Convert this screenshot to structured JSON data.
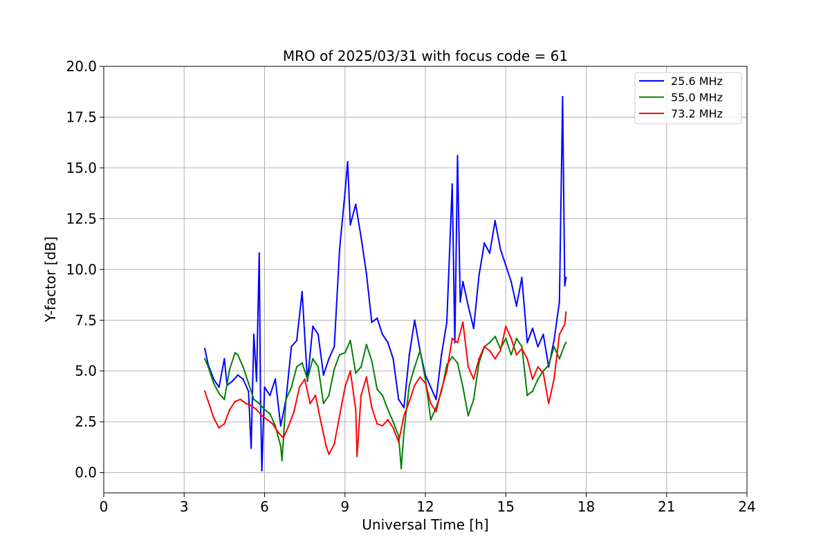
{
  "chart_data": {
    "type": "line",
    "title": "MRO of 2025/03/31 with focus code = 61",
    "xlabel": "Universal Time [h]",
    "ylabel": "Y-factor [dB]",
    "xlim": [
      0,
      24
    ],
    "ylim": [
      -1.0,
      20.0
    ],
    "xticks": [
      0,
      3,
      6,
      9,
      12,
      15,
      18,
      21,
      24
    ],
    "xtick_labels": [
      "0",
      "3",
      "6",
      "9",
      "12",
      "15",
      "18",
      "21",
      "24"
    ],
    "yticks": [
      0,
      2.5,
      5,
      7.5,
      10,
      12.5,
      15,
      17.5,
      20
    ],
    "ytick_labels": [
      "0.0",
      "2.5",
      "5.0",
      "7.5",
      "10.0",
      "12.5",
      "15.0",
      "17.5",
      "20.0"
    ],
    "grid": true,
    "legend_position": "top-right",
    "series": [
      {
        "name": "25.6 MHz",
        "legend_label": "  25.6 MHz",
        "color": "#0000ff",
        "x": [
          3.77,
          3.9,
          4.1,
          4.3,
          4.5,
          4.6,
          4.8,
          5.0,
          5.2,
          5.4,
          5.5,
          5.6,
          5.7,
          5.8,
          5.85,
          5.9,
          6.0,
          6.2,
          6.4,
          6.6,
          6.8,
          7.0,
          7.2,
          7.4,
          7.6,
          7.8,
          8.0,
          8.2,
          8.4,
          8.6,
          8.8,
          9.0,
          9.1,
          9.2,
          9.4,
          9.6,
          9.8,
          10.0,
          10.2,
          10.4,
          10.6,
          10.8,
          11.0,
          11.2,
          11.4,
          11.6,
          11.8,
          12.0,
          12.2,
          12.4,
          12.6,
          12.8,
          13.0,
          13.1,
          13.2,
          13.3,
          13.4,
          13.6,
          13.8,
          14.0,
          14.2,
          14.4,
          14.6,
          14.8,
          15.0,
          15.2,
          15.4,
          15.6,
          15.8,
          16.0,
          16.2,
          16.4,
          16.6,
          16.8,
          17.0,
          17.12,
          17.2,
          17.25
        ],
        "y": [
          6.1,
          5.3,
          4.6,
          4.2,
          5.6,
          4.3,
          4.5,
          4.8,
          4.6,
          4.0,
          1.2,
          6.8,
          4.5,
          10.8,
          3.5,
          0.1,
          4.2,
          3.8,
          4.6,
          2.3,
          3.6,
          6.2,
          6.5,
          8.9,
          4.5,
          7.2,
          6.8,
          4.8,
          5.6,
          6.2,
          11.0,
          13.8,
          15.3,
          12.2,
          13.2,
          11.6,
          9.8,
          7.4,
          7.6,
          6.8,
          6.4,
          5.6,
          3.6,
          3.2,
          5.8,
          7.5,
          6.0,
          4.8,
          4.2,
          3.6,
          5.8,
          7.4,
          14.2,
          6.4,
          15.6,
          8.4,
          9.4,
          8.2,
          7.1,
          9.7,
          11.3,
          10.8,
          12.4,
          11.0,
          10.2,
          9.4,
          8.2,
          9.6,
          6.4,
          7.1,
          6.2,
          6.8,
          5.2,
          6.5,
          8.4,
          18.5,
          9.2,
          9.6
        ]
      },
      {
        "name": "55.0 MHz",
        "legend_label": "  55.0 MHz",
        "color": "#008000",
        "x": [
          3.77,
          3.9,
          4.1,
          4.3,
          4.5,
          4.7,
          4.9,
          5.0,
          5.2,
          5.4,
          5.6,
          5.8,
          6.0,
          6.2,
          6.4,
          6.6,
          6.65,
          6.8,
          7.0,
          7.2,
          7.4,
          7.6,
          7.8,
          8.0,
          8.2,
          8.4,
          8.6,
          8.8,
          9.0,
          9.2,
          9.4,
          9.6,
          9.8,
          10.0,
          10.2,
          10.4,
          10.6,
          10.8,
          11.0,
          11.1,
          11.2,
          11.4,
          11.6,
          11.8,
          12.0,
          12.2,
          12.4,
          12.6,
          12.8,
          13.0,
          13.2,
          13.4,
          13.6,
          13.8,
          14.0,
          14.2,
          14.4,
          14.6,
          14.8,
          15.0,
          15.2,
          15.4,
          15.6,
          15.8,
          16.0,
          16.2,
          16.4,
          16.6,
          16.8,
          17.0,
          17.2,
          17.25
        ],
        "y": [
          5.6,
          5.2,
          4.4,
          3.9,
          3.6,
          5.1,
          5.9,
          5.8,
          5.2,
          4.4,
          3.6,
          3.4,
          3.1,
          2.9,
          2.3,
          1.3,
          0.6,
          3.6,
          4.2,
          5.2,
          5.4,
          4.6,
          5.6,
          5.2,
          3.4,
          3.8,
          5.1,
          5.8,
          5.9,
          6.5,
          4.9,
          5.2,
          6.3,
          5.5,
          4.1,
          3.8,
          3.1,
          2.5,
          1.8,
          0.2,
          2.0,
          4.3,
          5.2,
          6.0,
          4.6,
          2.6,
          3.2,
          4.0,
          5.3,
          5.7,
          5.4,
          4.2,
          2.8,
          3.6,
          5.4,
          6.2,
          6.4,
          6.7,
          6.1,
          6.6,
          5.8,
          6.6,
          6.2,
          3.8,
          4.0,
          4.6,
          5.0,
          5.3,
          6.2,
          5.6,
          6.3,
          6.4
        ]
      },
      {
        "name": "73.2 MHz",
        "legend_label": "  73.2 MHz",
        "color": "#ff0000",
        "x": [
          3.77,
          3.9,
          4.1,
          4.3,
          4.5,
          4.7,
          4.9,
          5.1,
          5.3,
          5.5,
          5.7,
          5.9,
          6.1,
          6.3,
          6.5,
          6.7,
          6.9,
          7.1,
          7.3,
          7.5,
          7.7,
          7.9,
          8.1,
          8.3,
          8.4,
          8.6,
          8.8,
          9.0,
          9.2,
          9.4,
          9.45,
          9.6,
          9.8,
          10.0,
          10.2,
          10.4,
          10.6,
          10.8,
          11.0,
          11.2,
          11.4,
          11.6,
          11.8,
          12.0,
          12.2,
          12.4,
          12.6,
          12.8,
          13.0,
          13.2,
          13.4,
          13.6,
          13.8,
          14.0,
          14.2,
          14.4,
          14.6,
          14.8,
          15.0,
          15.2,
          15.4,
          15.6,
          15.8,
          16.0,
          16.2,
          16.4,
          16.6,
          16.8,
          17.0,
          17.2,
          17.25
        ],
        "y": [
          4.0,
          3.5,
          2.7,
          2.2,
          2.4,
          3.1,
          3.5,
          3.6,
          3.4,
          3.3,
          3.1,
          2.8,
          2.6,
          2.4,
          2.0,
          1.7,
          2.3,
          3.0,
          4.2,
          4.6,
          3.4,
          3.8,
          2.5,
          1.3,
          0.9,
          1.4,
          2.8,
          4.2,
          5.0,
          3.1,
          0.8,
          3.8,
          4.7,
          3.2,
          2.4,
          2.3,
          2.6,
          2.2,
          1.5,
          2.8,
          3.5,
          4.3,
          4.7,
          4.4,
          3.4,
          3.0,
          4.1,
          5.0,
          6.6,
          6.4,
          7.4,
          5.2,
          4.6,
          5.6,
          6.2,
          6.0,
          5.6,
          6.0,
          7.2,
          6.6,
          5.8,
          6.1,
          5.6,
          4.6,
          5.2,
          4.9,
          3.4,
          4.6,
          6.8,
          7.3,
          7.9
        ]
      }
    ]
  }
}
